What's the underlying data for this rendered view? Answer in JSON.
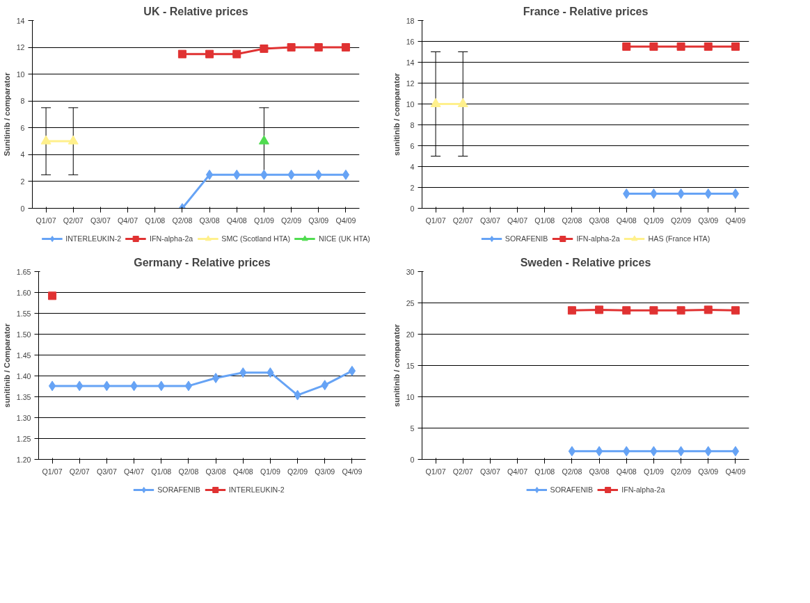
{
  "chart_data": [
    {
      "type": "line",
      "title": "UK - Relative prices",
      "ylabel": "Sunitinib / comparator",
      "categories": [
        "Q1/07",
        "Q2/07",
        "Q3/07",
        "Q4/07",
        "Q1/08",
        "Q2/08",
        "Q3/08",
        "Q4/08",
        "Q1/09",
        "Q2/09",
        "Q3/09",
        "Q4/09"
      ],
      "ylim": [
        0,
        14
      ],
      "yticks": [
        0,
        2,
        4,
        6,
        8,
        10,
        12,
        14
      ],
      "grid": "y",
      "legend": "bottom",
      "series": [
        {
          "name": "INTERLEUKIN-2",
          "color": "#66a3f5",
          "marker": "diamond",
          "values": [
            null,
            null,
            null,
            null,
            null,
            0,
            2.5,
            2.5,
            2.5,
            2.5,
            2.5,
            2.5
          ]
        },
        {
          "name": "IFN-alpha-2a",
          "color": "#e03232",
          "marker": "square",
          "values": [
            null,
            null,
            null,
            null,
            null,
            11.5,
            11.5,
            11.5,
            11.9,
            12.0,
            12.0,
            12.0
          ]
        },
        {
          "name": "SMC (Scotland HTA)",
          "color": "#fff08c",
          "marker": "triangle",
          "values": [
            5,
            5,
            null,
            null,
            null,
            null,
            null,
            null,
            null,
            null,
            null,
            null
          ],
          "errors": [
            [
              2.5,
              7.5
            ],
            [
              2.5,
              7.5
            ],
            null,
            null,
            null,
            null,
            null,
            null,
            null,
            null,
            null,
            null
          ]
        },
        {
          "name": "NICE (UK HTA)",
          "color": "#50dc50",
          "marker": "triangle",
          "values": [
            null,
            null,
            null,
            null,
            null,
            null,
            null,
            null,
            5,
            null,
            null,
            null
          ],
          "errors": [
            null,
            null,
            null,
            null,
            null,
            null,
            null,
            null,
            [
              2.5,
              7.5
            ],
            null,
            null,
            null
          ]
        }
      ]
    },
    {
      "type": "line",
      "title": "France - Relative prices",
      "ylabel": "sunitinib / comparator",
      "categories": [
        "Q1/07",
        "Q2/07",
        "Q3/07",
        "Q4/07",
        "Q1/08",
        "Q2/08",
        "Q3/08",
        "Q4/08",
        "Q1/09",
        "Q2/09",
        "Q3/09",
        "Q4/09"
      ],
      "ylim": [
        0,
        18
      ],
      "yticks": [
        0,
        2,
        4,
        6,
        8,
        10,
        12,
        14,
        16,
        18
      ],
      "grid": "y",
      "legend": "bottom",
      "series": [
        {
          "name": "SORAFENIB",
          "color": "#66a3f5",
          "marker": "diamond",
          "values": [
            null,
            null,
            null,
            null,
            null,
            null,
            null,
            1.4,
            1.4,
            1.4,
            1.4,
            1.4
          ]
        },
        {
          "name": "IFN-alpha-2a",
          "color": "#e03232",
          "marker": "square",
          "values": [
            null,
            null,
            null,
            null,
            null,
            null,
            null,
            15.5,
            15.5,
            15.5,
            15.5,
            15.5
          ]
        },
        {
          "name": "HAS (France HTA)",
          "color": "#fff08c",
          "marker": "triangle",
          "values": [
            10,
            10,
            null,
            null,
            null,
            null,
            null,
            null,
            null,
            null,
            null,
            null
          ],
          "errors": [
            [
              5,
              15
            ],
            [
              5,
              15
            ],
            null,
            null,
            null,
            null,
            null,
            null,
            null,
            null,
            null,
            null
          ]
        }
      ]
    },
    {
      "type": "line",
      "title": "Germany - Relative prices",
      "ylabel": "sunitinib / Comparator",
      "categories": [
        "Q1/07",
        "Q2/07",
        "Q3/07",
        "Q4/07",
        "Q1/08",
        "Q2/08",
        "Q3/08",
        "Q4/08",
        "Q1/09",
        "Q2/09",
        "Q3/09",
        "Q4/09"
      ],
      "ylim": [
        1.2,
        1.65
      ],
      "yticks": [
        {
          "value": 1.2,
          "label": "1.20"
        },
        {
          "value": 1.25,
          "label": "1.25"
        },
        {
          "value": 1.3,
          "label": "1.30"
        },
        {
          "value": 1.35,
          "label": "1.35"
        },
        {
          "value": 1.4,
          "label": "1.40"
        },
        {
          "value": 1.45,
          "label": "1.45"
        },
        {
          "value": 1.5,
          "label": "1.50"
        },
        {
          "value": 1.55,
          "label": "1.55"
        },
        {
          "value": 1.6,
          "label": "1.60"
        },
        {
          "value": 1.65,
          "label": "1.65"
        }
      ],
      "grid": "y",
      "legend": "bottom",
      "series": [
        {
          "name": "SORAFENIB",
          "color": "#66a3f5",
          "marker": "diamond",
          "values": [
            1.376,
            1.376,
            1.376,
            1.376,
            1.376,
            1.376,
            1.395,
            1.408,
            1.408,
            1.354,
            1.378,
            1.412
          ]
        },
        {
          "name": "INTERLEUKIN-2",
          "color": "#e03232",
          "marker": "square",
          "values": [
            1.592,
            null,
            null,
            null,
            null,
            null,
            null,
            null,
            null,
            null,
            null,
            null
          ]
        }
      ]
    },
    {
      "type": "line",
      "title": "Sweden - Relative prices",
      "ylabel": "sunitinib / comparator",
      "categories": [
        "Q1/07",
        "Q2/07",
        "Q3/07",
        "Q4/07",
        "Q1/08",
        "Q2/08",
        "Q3/08",
        "Q4/08",
        "Q1/09",
        "Q2/09",
        "Q3/09",
        "Q4/09"
      ],
      "ylim": [
        0,
        30
      ],
      "yticks": [
        0,
        5,
        10,
        15,
        20,
        25,
        30
      ],
      "grid": "y",
      "legend": "bottom",
      "series": [
        {
          "name": "SORAFENIB",
          "color": "#66a3f5",
          "marker": "diamond",
          "values": [
            null,
            null,
            null,
            null,
            null,
            1.3,
            1.3,
            1.3,
            1.3,
            1.3,
            1.3,
            1.3
          ]
        },
        {
          "name": "IFN-alpha-2a",
          "color": "#e03232",
          "marker": "square",
          "values": [
            null,
            null,
            null,
            null,
            null,
            23.8,
            23.9,
            23.8,
            23.8,
            23.8,
            23.9,
            23.8
          ]
        }
      ]
    }
  ]
}
